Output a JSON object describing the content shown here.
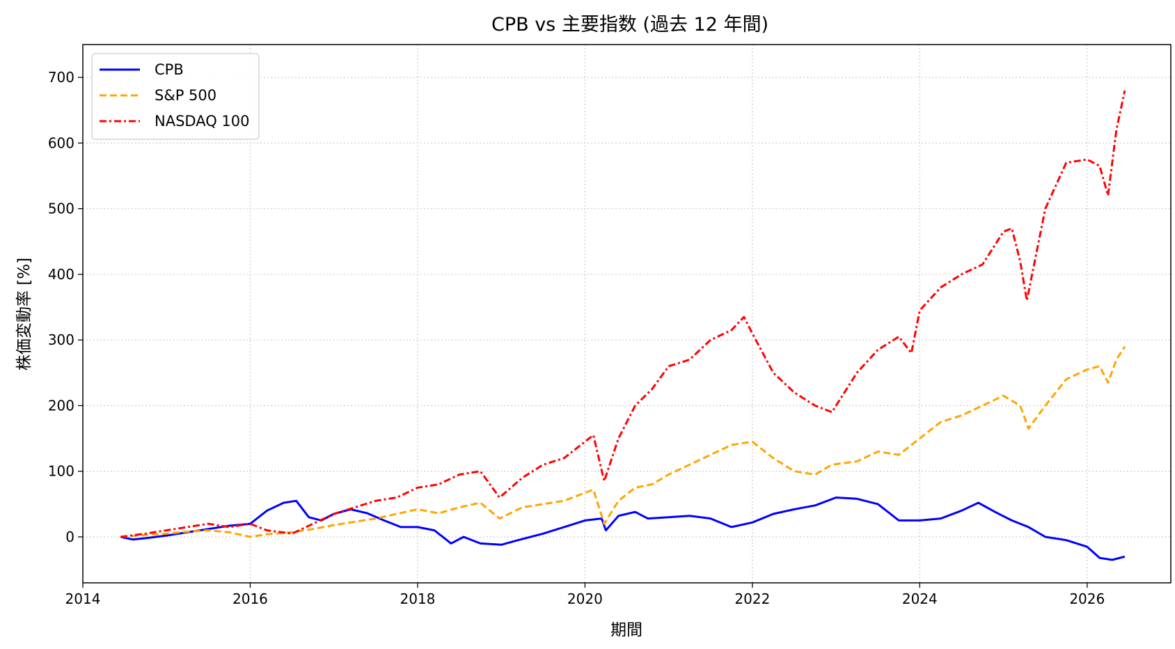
{
  "chart_data": {
    "type": "line",
    "title": "CPB vs 主要指数 (過去 12 年間)",
    "xlabel": "期間",
    "ylabel": "株価変動率 [%]",
    "xlim": [
      2014.0,
      2027.0
    ],
    "ylim": [
      -70,
      750
    ],
    "xticks": [
      2014,
      2016,
      2018,
      2020,
      2022,
      2024,
      2026
    ],
    "xtick_labels": [
      "2014",
      "2016",
      "2018",
      "2020",
      "2022",
      "2024",
      "2026"
    ],
    "yticks": [
      0,
      100,
      200,
      300,
      400,
      500,
      600,
      700
    ],
    "ytick_labels": [
      "0",
      "100",
      "200",
      "300",
      "400",
      "500",
      "600",
      "700"
    ],
    "grid": true,
    "legend_position": "top-left",
    "series": [
      {
        "name": "CPB",
        "color": "#0000ff",
        "dash": "solid",
        "x": [
          2014.45,
          2014.6,
          2014.75,
          2015.0,
          2015.25,
          2015.5,
          2015.75,
          2016.0,
          2016.2,
          2016.4,
          2016.55,
          2016.7,
          2016.85,
          2017.0,
          2017.2,
          2017.4,
          2017.6,
          2017.8,
          2018.0,
          2018.2,
          2018.4,
          2018.55,
          2018.75,
          2019.0,
          2019.2,
          2019.5,
          2019.75,
          2020.0,
          2020.2,
          2020.25,
          2020.4,
          2020.6,
          2020.75,
          2021.0,
          2021.25,
          2021.5,
          2021.75,
          2022.0,
          2022.25,
          2022.5,
          2022.75,
          2023.0,
          2023.25,
          2023.5,
          2023.75,
          2024.0,
          2024.25,
          2024.5,
          2024.7,
          2024.9,
          2025.1,
          2025.3,
          2025.5,
          2025.75,
          2026.0,
          2026.15,
          2026.3,
          2026.45
        ],
        "y": [
          0,
          -4,
          -2,
          2,
          7,
          12,
          17,
          20,
          40,
          52,
          55,
          30,
          25,
          35,
          42,
          36,
          25,
          15,
          15,
          10,
          -10,
          0,
          -10,
          -12,
          -5,
          5,
          15,
          25,
          28,
          10,
          32,
          38,
          28,
          30,
          32,
          28,
          15,
          22,
          35,
          42,
          48,
          60,
          58,
          50,
          25,
          25,
          28,
          40,
          52,
          38,
          25,
          15,
          0,
          -5,
          -15,
          -32,
          -35,
          -30
        ]
      },
      {
        "name": "S&P 500",
        "color": "#ffa500",
        "dash": "dashed",
        "x": [
          2014.45,
          2014.75,
          2015.0,
          2015.25,
          2015.5,
          2015.75,
          2016.0,
          2016.2,
          2016.5,
          2016.75,
          2017.0,
          2017.25,
          2017.5,
          2017.75,
          2018.0,
          2018.25,
          2018.5,
          2018.75,
          2018.98,
          2019.25,
          2019.5,
          2019.75,
          2020.1,
          2020.23,
          2020.4,
          2020.6,
          2020.8,
          2021.0,
          2021.25,
          2021.5,
          2021.75,
          2022.0,
          2022.25,
          2022.5,
          2022.75,
          2022.95,
          2023.25,
          2023.5,
          2023.75,
          2024.0,
          2024.25,
          2024.5,
          2024.75,
          2025.0,
          2025.2,
          2025.3,
          2025.5,
          2025.75,
          2026.0,
          2026.15,
          2026.25,
          2026.35,
          2026.45
        ],
        "y": [
          0,
          3,
          5,
          8,
          10,
          7,
          0,
          4,
          7,
          12,
          18,
          23,
          28,
          35,
          42,
          36,
          45,
          52,
          28,
          45,
          50,
          55,
          72,
          20,
          55,
          75,
          80,
          95,
          110,
          125,
          140,
          145,
          120,
          100,
          95,
          110,
          115,
          130,
          125,
          150,
          175,
          185,
          200,
          215,
          200,
          165,
          200,
          240,
          255,
          260,
          235,
          270,
          290
        ]
      },
      {
        "name": "NASDAQ 100",
        "color": "#ff0000",
        "dash": "dashdot",
        "x": [
          2014.45,
          2014.75,
          2015.0,
          2015.25,
          2015.5,
          2015.75,
          2016.0,
          2016.2,
          2016.5,
          2016.75,
          2017.0,
          2017.25,
          2017.5,
          2017.75,
          2018.0,
          2018.25,
          2018.5,
          2018.75,
          2018.98,
          2019.25,
          2019.5,
          2019.75,
          2020.1,
          2020.23,
          2020.4,
          2020.6,
          2020.8,
          2021.0,
          2021.25,
          2021.5,
          2021.75,
          2021.9,
          2022.0,
          2022.25,
          2022.5,
          2022.75,
          2022.95,
          2023.25,
          2023.5,
          2023.75,
          2023.9,
          2024.0,
          2024.25,
          2024.5,
          2024.75,
          2025.0,
          2025.1,
          2025.2,
          2025.28,
          2025.5,
          2025.75,
          2026.0,
          2026.15,
          2026.25,
          2026.35,
          2026.45
        ],
        "y": [
          0,
          5,
          10,
          15,
          20,
          15,
          20,
          10,
          5,
          20,
          35,
          45,
          55,
          60,
          75,
          80,
          95,
          100,
          60,
          90,
          110,
          120,
          155,
          85,
          150,
          200,
          225,
          260,
          270,
          300,
          315,
          335,
          310,
          250,
          220,
          200,
          190,
          250,
          285,
          305,
          280,
          345,
          380,
          400,
          415,
          465,
          470,
          420,
          360,
          500,
          570,
          575,
          565,
          520,
          620,
          680
        ]
      }
    ]
  }
}
